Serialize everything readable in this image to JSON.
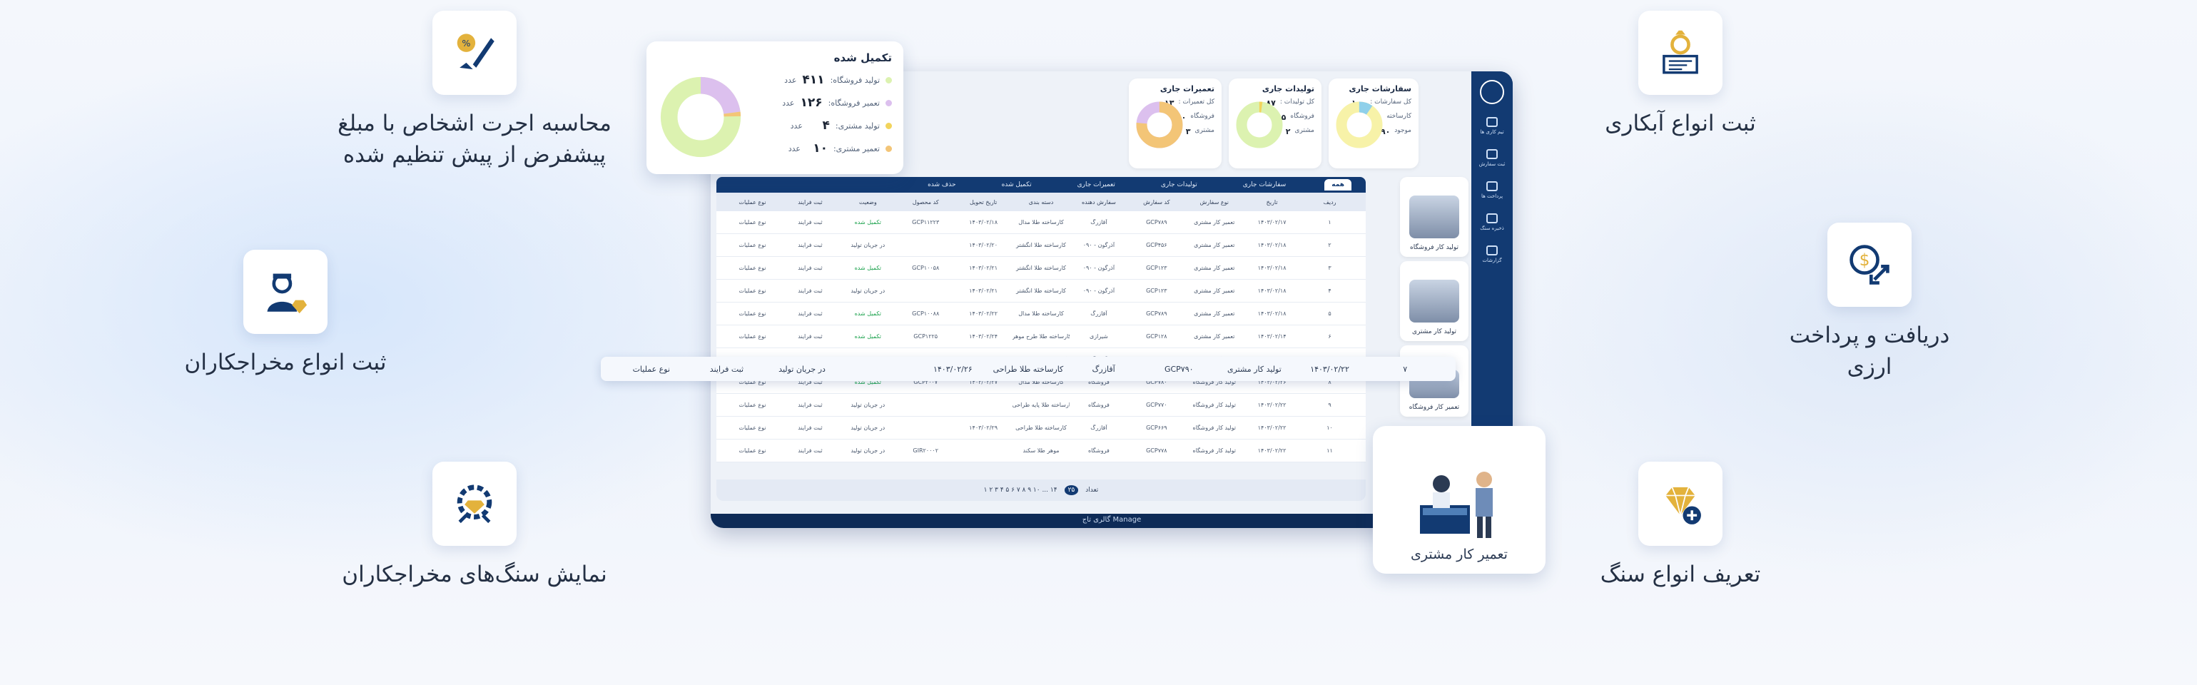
{
  "features": {
    "wage": {
      "text1": "محاسبه اجرت اشخاص با مبلغ",
      "text2": "پیشفرض از پیش تنظیم شده",
      "icon": "pen-gem-icon"
    },
    "contractors": {
      "text": "ثبت انواع مخراجکاران",
      "icon": "worker-gem-icon"
    },
    "stones_show": {
      "text": "نمایش سنگ‌های مخراجکاران",
      "icon": "gear-gem-icon"
    },
    "plating": {
      "text": "ثبت انواع آبکاری",
      "icon": "ring-certificate-icon"
    },
    "currency": {
      "text1": "دریافت و پرداخت",
      "text2": "ارزی",
      "icon": "currency-exchange-icon"
    },
    "stone_define": {
      "text": "تعریف انواع سنگ",
      "icon": "diamond-add-icon"
    }
  },
  "sidebar": {
    "items": [
      "تیم کاری ها",
      "ثبت سفارش",
      "پرداخت ها",
      "ذخیره سنگ",
      "گزارشات"
    ]
  },
  "stat_cards": [
    {
      "title": "سفارشات جاری",
      "line1": "کل سفارشات :",
      "v1": "۱۰۰",
      "line2": "کارساخته",
      "v2": "۱۰",
      "line3": "موجود",
      "v3": "۹۰"
    },
    {
      "title": "تولیدات جاری",
      "line1": "کل تولیدات :",
      "v1": "۸۷",
      "line2": "فروشگاه",
      "v2": "۸۵",
      "line3": "مشتری",
      "v3": "۲"
    },
    {
      "title": "تعمیرات جاری",
      "line1": "کل تعمیرات :",
      "v1": "۱۳",
      "line2": "فروشگاه",
      "v2": "۱۰",
      "line3": "مشتری",
      "v3": "۳"
    }
  ],
  "done_card": {
    "title": "تکمیل شده",
    "unit": "عدد",
    "rows": [
      {
        "label": "تولید فروشگاه:",
        "value": "۴۱۱"
      },
      {
        "label": "تعمیر فروشگاه:",
        "value": "۱۲۶"
      },
      {
        "label": "تولید مشتری:",
        "value": "۴"
      },
      {
        "label": "تعمیر مشتری:",
        "value": "۱۰"
      }
    ]
  },
  "side_cards": [
    {
      "label": "تولید کار فروشگاه"
    },
    {
      "label": "تولید کار مشتری"
    },
    {
      "label": "تعمیر کار فروشگاه"
    }
  ],
  "repair_card": {
    "label": "تعمیر کار مشتری"
  },
  "tabs": [
    "همه",
    "سفارشات جاری",
    "تولیدات جاری",
    "تعمیرات جاری",
    "تکمیل شده",
    "حذف شده"
  ],
  "columns": [
    "ردیف",
    "تاریخ",
    "نوع سفارش",
    "کد سفارش",
    "سفارش دهنده",
    "دسته بندی",
    "تاریخ تحویل",
    "کد محصول",
    "وضعیت",
    "ثبت فرایند",
    "نوع عملیات"
  ],
  "rows": [
    [
      "۱",
      "۱۴۰۳/۰۲/۱۷",
      "تعمیر کار مشتری",
      "GCP۷۸۹",
      "آقازرگ",
      "کارساخته طلا مدال",
      "۱۴۰۳/۰۲/۱۸",
      "GCP۱۱۲۲۳",
      "تکمیل شده",
      "ثبت فرایند",
      "نوع عملیات"
    ],
    [
      "۲",
      "۱۴۰۳/۰۲/۱۸",
      "تعمیر کار مشتری",
      "GCP۴۵۶",
      "۰۹۰ - آذرگون",
      "کارساخته طلا انگشتر",
      "۱۴۰۳/۰۲/۲۰",
      "",
      "در جریان تولید",
      "ثبت فرایند",
      "نوع عملیات"
    ],
    [
      "۳",
      "۱۴۰۳/۰۲/۱۸",
      "تعمیر کار مشتری",
      "GCP۱۲۳",
      "۰۹۰ - آذرگون",
      "کارساخته طلا انگشتر",
      "۱۴۰۳/۰۲/۲۱",
      "GCP۱۰۰۵۸",
      "تکمیل شده",
      "ثبت فرایند",
      "نوع عملیات"
    ],
    [
      "۴",
      "۱۴۰۳/۰۲/۱۸",
      "تعمیر کار مشتری",
      "GCP۱۲۳",
      "۰۹۰ - آذرگون",
      "کارساخته طلا انگشتر",
      "۱۴۰۳/۰۲/۲۱",
      "",
      "در جریان تولید",
      "ثبت فرایند",
      "نوع عملیات"
    ],
    [
      "۵",
      "۱۴۰۳/۰۲/۱۸",
      "تعمیر کار مشتری",
      "GCP۷۸۹",
      "آقازرگ",
      "کارساخته طلا مدال",
      "۱۴۰۳/۰۲/۲۲",
      "GCP۱۰۰۸۸",
      "تکمیل شده",
      "ثبت فرایند",
      "نوع عملیات"
    ],
    [
      "۶",
      "۱۴۰۳/۰۲/۱۴",
      "تعمیر کار مشتری",
      "GCP۱۲۸",
      "شیرازی",
      "کارساخته طلا طرح موهر",
      "۱۴۰۳/۰۲/۲۴",
      "GCP۱۲۲۵",
      "تکمیل شده",
      "ثبت فرایند",
      "نوع عملیات"
    ],
    [
      "۷",
      "۱۴۰۳/۰۲/۲۲",
      "تولید کار مشتری",
      "GCP۷۹۰",
      "آقازرگ",
      "کارساخته طلا طراحی",
      "۱۴۰۳/۰۲/۲۶",
      "",
      "در جریان تولید",
      "ثبت فرایند",
      "نوع عملیات"
    ],
    [
      "۸",
      "۱۴۰۳/۰۲/۲۶",
      "تولید کار فروشگاه",
      "GCP۷۸۰",
      "فروشگاه",
      "کارساخته طلا مدال",
      "۱۴۰۳/۰۲/۲۷",
      "GCP۲۰۰۷",
      "تکمیل شده",
      "ثبت فرایند",
      "نوع عملیات"
    ],
    [
      "۹",
      "۱۴۰۳/۰۲/۲۲",
      "تولید کار فروشگاه",
      "GCP۷۷۰",
      "فروشگاه",
      "کارساخته طلا پایه طراحی",
      "",
      "",
      "در جریان تولید",
      "ثبت فرایند",
      "نوع عملیات"
    ],
    [
      "۱۰",
      "۱۴۰۳/۰۲/۲۲",
      "تولید کار فروشگاه",
      "GCP۶۶۹",
      "آقازرگ",
      "کارساخته طلا طراحی",
      "۱۴۰۳/۰۲/۲۹",
      "",
      "در جریان تولید",
      "ثبت فرایند",
      "نوع عملیات"
    ],
    [
      "۱۱",
      "۱۴۰۳/۰۲/۲۲",
      "تولید کار فروشگاه",
      "GCP۷۷۸",
      "فروشگاه",
      "موهر طلا سکند",
      "",
      "GIR۲۰۰۰۲",
      "در جریان تولید",
      "ثبت فرایند",
      "نوع عملیات"
    ]
  ],
  "highlight_row": [
    "۷",
    "۱۴۰۳/۰۲/۲۲",
    "تولید کار مشتری",
    "GCP۷۹۰",
    "آقازرگ",
    "کارساخته طلا طراحی",
    "۱۴۰۳/۰۲/۲۶",
    "",
    "در جریان تولید",
    "ثبت فرایند",
    "نوع عملیات"
  ],
  "pager": {
    "label": "تعداد",
    "size": "۲۵",
    "pages": "۱ ۲ ۳ ۴ ۵ ۶ ۷ ۸ ۹ ۱۰ ... ۱۴"
  },
  "footer": "گالری تاج Manage",
  "colors": {
    "navy": "#123a72",
    "gold": "#e3b23c",
    "green": "#18a04a"
  }
}
